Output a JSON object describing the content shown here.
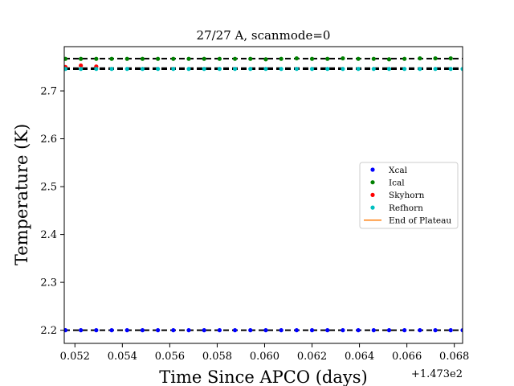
{
  "chart_data": {
    "type": "scatter",
    "title": "27/27 A, scanmode=0",
    "xlabel": "Time Since APCO (days)",
    "ylabel": "Temperature (K)",
    "x_offset_label": "+1.473e2",
    "xlim": [
      0.05155,
      0.06835
    ],
    "ylim": [
      2.1725,
      2.7925
    ],
    "x_ticks": [
      0.052,
      0.054,
      0.056,
      0.058,
      0.06,
      0.062,
      0.064,
      0.066,
      0.068
    ],
    "x_tick_labels": [
      "0.052",
      "0.054",
      "0.056",
      "0.058",
      "0.060",
      "0.062",
      "0.064",
      "0.066",
      "0.068"
    ],
    "y_ticks": [
      2.2,
      2.3,
      2.4,
      2.5,
      2.6,
      2.7
    ],
    "y_tick_labels": [
      "2.2",
      "2.3",
      "2.4",
      "2.5",
      "2.6",
      "2.7"
    ],
    "grid": false,
    "legend_position": "center-right",
    "reference_lines": [
      {
        "y": 2.7675,
        "style": "dashed",
        "color": "#000000"
      },
      {
        "y": 2.7475,
        "style": "dashed",
        "color": "#000000"
      },
      {
        "y": 2.7455,
        "style": "dashed",
        "color": "#000000"
      },
      {
        "y": 2.2,
        "style": "dashed",
        "color": "#000000"
      }
    ],
    "series": [
      {
        "name": "Xcal",
        "color": "#0000ff",
        "marker": "dot",
        "x": [
          0.0516,
          0.05225,
          0.0529,
          0.05355,
          0.0542,
          0.05485,
          0.0555,
          0.05615,
          0.0568,
          0.05745,
          0.0581,
          0.05875,
          0.0594,
          0.06005,
          0.0607,
          0.06135,
          0.062,
          0.06265,
          0.0633,
          0.06395,
          0.0646,
          0.06525,
          0.0659,
          0.06655,
          0.0672,
          0.06785,
          0.06835
        ],
        "y": [
          2.2,
          2.2,
          2.2,
          2.2,
          2.2,
          2.2,
          2.2,
          2.2,
          2.2,
          2.2,
          2.2,
          2.2,
          2.2,
          2.2,
          2.2,
          2.2,
          2.2,
          2.2,
          2.2,
          2.2,
          2.2,
          2.2,
          2.2,
          2.2,
          2.2,
          2.2,
          2.2
        ]
      },
      {
        "name": "Ical",
        "color": "#008000",
        "marker": "dot",
        "x": [
          0.0516,
          0.05225,
          0.0529,
          0.05355,
          0.0542,
          0.05485,
          0.0555,
          0.05615,
          0.0568,
          0.05745,
          0.0581,
          0.05875,
          0.0594,
          0.06005,
          0.0607,
          0.06135,
          0.062,
          0.06265,
          0.0633,
          0.06395,
          0.0646,
          0.06525,
          0.0659,
          0.06655,
          0.0672,
          0.06785
        ],
        "y": [
          2.767,
          2.767,
          2.767,
          2.767,
          2.767,
          2.767,
          2.767,
          2.767,
          2.767,
          2.767,
          2.767,
          2.767,
          2.767,
          2.766,
          2.767,
          2.768,
          2.767,
          2.767,
          2.768,
          2.767,
          2.767,
          2.766,
          2.767,
          2.768,
          2.768,
          2.768
        ]
      },
      {
        "name": "Skyhorn",
        "color": "#ff0000",
        "marker": "dot",
        "x": [
          0.0516,
          0.05225,
          0.0529
        ],
        "y": [
          2.75,
          2.753,
          2.751
        ]
      },
      {
        "name": "Refhorn",
        "color": "#00bfbf",
        "marker": "dot",
        "x": [
          0.0516,
          0.05225,
          0.0529,
          0.05355,
          0.0542,
          0.05485,
          0.0555,
          0.05615,
          0.0568,
          0.05745,
          0.0581,
          0.05875,
          0.0594,
          0.06005,
          0.0607,
          0.06135,
          0.062,
          0.06265,
          0.0633,
          0.06395,
          0.0646,
          0.06525,
          0.0659,
          0.06655,
          0.0672,
          0.06785,
          0.06835
        ],
        "y": [
          2.746,
          2.746,
          2.746,
          2.746,
          2.746,
          2.746,
          2.746,
          2.746,
          2.746,
          2.746,
          2.746,
          2.746,
          2.746,
          2.746,
          2.746,
          2.746,
          2.746,
          2.746,
          2.746,
          2.746,
          2.746,
          2.746,
          2.746,
          2.746,
          2.746,
          2.746,
          2.746
        ]
      },
      {
        "name": "End of Plateau",
        "color": "#ff7f0e",
        "marker": "line",
        "x": [],
        "y": []
      }
    ]
  }
}
